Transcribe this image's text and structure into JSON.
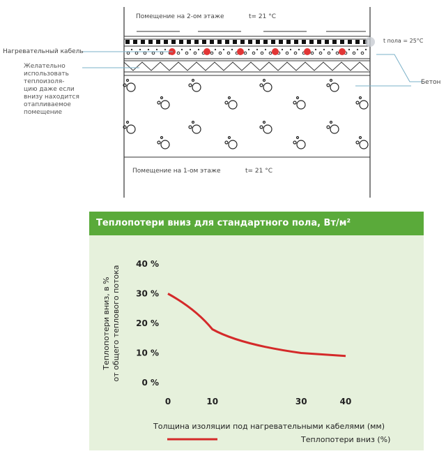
{
  "diagram": {
    "room_top_label": "Помещение на 2-ом этаже",
    "room_top_temp": "t= 21 °C",
    "room_bottom_label": "Помещение на 1-ом этаже",
    "room_bottom_temp": "t= 21 °C",
    "floor_temp": "t пола = 25°C",
    "heating_cable_label": "Нагревательный кабель",
    "insulation_note": "Желательно использовать теплоизоля- цию даже если внизу находится отапливаемое помещение",
    "concrete_label": "Бетон"
  },
  "chart_data": {
    "type": "line",
    "title": "Теплопотери вниз для стандартного пола, Вт/м²",
    "xlabel": "Толщина изоляции под нагревательными кабелями (мм)",
    "ylabel_line1": "Теплопотери вниз, в %",
    "ylabel_line2": "от общего теплового потока",
    "x_ticks": [
      "0",
      "10",
      "30",
      "40"
    ],
    "y_ticks": [
      "0 %",
      "10 %",
      "20 %",
      "30 %",
      "40 %"
    ],
    "ylim": [
      0,
      40
    ],
    "series": [
      {
        "name": "Теплопотери вниз (%)",
        "color": "#d42a2a",
        "points": [
          [
            0,
            30
          ],
          [
            10,
            18
          ],
          [
            30,
            10
          ],
          [
            40,
            9
          ]
        ]
      }
    ],
    "legend": "bottom-right"
  }
}
